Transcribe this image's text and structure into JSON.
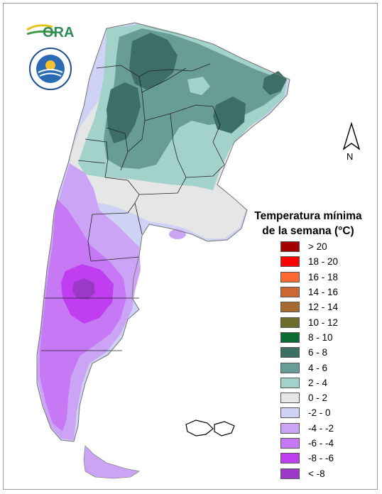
{
  "legend": {
    "title_line1": "Temperatura mínima",
    "title_line2": "de la semana (°C)",
    "items": [
      {
        "label": "> 20",
        "color": "#a30000"
      },
      {
        "label": "18 - 20",
        "color": "#ff0000"
      },
      {
        "label": "16 - 18",
        "color": "#ff6a33"
      },
      {
        "label": "14 - 16",
        "color": "#cc6633"
      },
      {
        "label": "12 - 14",
        "color": "#a86a33"
      },
      {
        "label": "10 - 12",
        "color": "#6b6b2b"
      },
      {
        "label": "8 - 10",
        "color": "#0b6b33"
      },
      {
        "label": "6 - 8",
        "color": "#3e6f66"
      },
      {
        "label": "4 - 6",
        "color": "#679d96"
      },
      {
        "label": "2 - 4",
        "color": "#a3d2cb"
      },
      {
        "label": "0 - 2",
        "color": "#e6e6e6"
      },
      {
        "label": "-2 - 0",
        "color": "#cfd2f5"
      },
      {
        "label": "-4 - -2",
        "color": "#cba4f5"
      },
      {
        "label": "-6 - -4",
        "color": "#c678f5"
      },
      {
        "label": "-8 - -6",
        "color": "#bf3ff0"
      },
      {
        "label": "< -8",
        "color": "#9c38c8"
      }
    ]
  },
  "north_arrow": {
    "label": "N"
  },
  "ora_logo": {
    "text": "ORA"
  }
}
